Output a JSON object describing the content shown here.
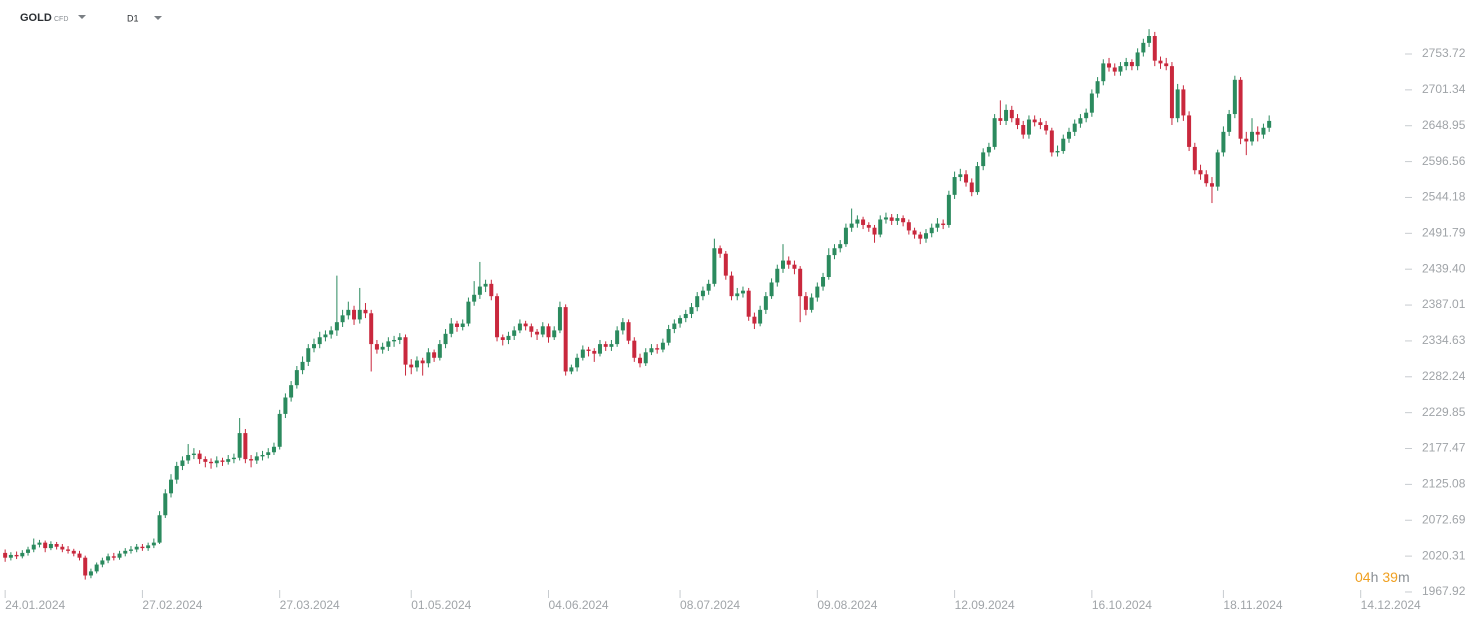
{
  "header": {
    "symbol": "GOLD",
    "badge": "CFD",
    "timeframe": "D1"
  },
  "countdown": {
    "hours": "04",
    "hours_unit": "h",
    "minutes": "39",
    "minutes_unit": "m"
  },
  "chart_data": {
    "type": "candlestick",
    "up_color": "#2b8a5e",
    "down_color": "#c9283d",
    "ylim": [
      1956.2,
      2832.6
    ],
    "yticks": [
      1967.92,
      2020.31,
      2072.69,
      2125.08,
      2177.47,
      2229.85,
      2282.24,
      2334.63,
      2387.01,
      {
        "value": 2439.4,
        "label": "2439.40"
      },
      2491.79,
      2544.18,
      2596.56,
      2648.95,
      2701.34,
      2753.72
    ],
    "xlim": [
      -0.9,
      243
    ],
    "xticks": [
      {
        "value": 0,
        "label": "24.01.2024"
      },
      {
        "value": 24,
        "label": "27.02.2024"
      },
      {
        "value": 48,
        "label": "27.03.2024"
      },
      {
        "value": 71,
        "label": "01.05.2024"
      },
      {
        "value": 95,
        "label": "04.06.2024"
      },
      {
        "value": 118,
        "label": "08.07.2024"
      },
      {
        "value": 142,
        "label": "09.08.2024"
      },
      {
        "value": 166,
        "label": "12.09.2024"
      },
      {
        "value": 190,
        "label": "16.10.2024"
      },
      {
        "value": 213,
        "label": "18.11.2024"
      },
      {
        "value": 237,
        "label": "14.12.2024"
      }
    ],
    "candles": [
      [
        2025,
        2030,
        2012,
        2018
      ],
      [
        2018,
        2026,
        2014,
        2022
      ],
      [
        2022,
        2027,
        2016,
        2020
      ],
      [
        2020,
        2029,
        2017,
        2025
      ],
      [
        2025,
        2034,
        2021,
        2030
      ],
      [
        2030,
        2046,
        2026,
        2037
      ],
      [
        2037,
        2044,
        2033,
        2040
      ],
      [
        2040,
        2043,
        2026,
        2032
      ],
      [
        2032,
        2042,
        2029,
        2038
      ],
      [
        2038,
        2041,
        2030,
        2034
      ],
      [
        2034,
        2038,
        2026,
        2030
      ],
      [
        2030,
        2035,
        2024,
        2028
      ],
      [
        2028,
        2031,
        2020,
        2024
      ],
      [
        2024,
        2028,
        2014,
        2018
      ],
      [
        2018,
        2021,
        1986,
        1992
      ],
      [
        1992,
        2002,
        1988,
        1998
      ],
      [
        1998,
        2011,
        1995,
        2008
      ],
      [
        2008,
        2018,
        2004,
        2014
      ],
      [
        2014,
        2024,
        2010,
        2020
      ],
      [
        2020,
        2025,
        2014,
        2018
      ],
      [
        2018,
        2028,
        2015,
        2024
      ],
      [
        2024,
        2032,
        2020,
        2028
      ],
      [
        2028,
        2035,
        2024,
        2030
      ],
      [
        2030,
        2038,
        2026,
        2034
      ],
      [
        2034,
        2038,
        2028,
        2032
      ],
      [
        2032,
        2040,
        2028,
        2036
      ],
      [
        2036,
        2046,
        2032,
        2040
      ],
      [
        2040,
        2086,
        2038,
        2080
      ],
      [
        2080,
        2118,
        2076,
        2112
      ],
      [
        2112,
        2140,
        2106,
        2132
      ],
      [
        2132,
        2158,
        2126,
        2152
      ],
      [
        2152,
        2166,
        2146,
        2160
      ],
      [
        2160,
        2184,
        2155,
        2168
      ],
      [
        2168,
        2178,
        2162,
        2170
      ],
      [
        2170,
        2175,
        2155,
        2162
      ],
      [
        2162,
        2166,
        2150,
        2158
      ],
      [
        2158,
        2163,
        2148,
        2156
      ],
      [
        2156,
        2166,
        2150,
        2160
      ],
      [
        2160,
        2164,
        2152,
        2158
      ],
      [
        2158,
        2168,
        2154,
        2162
      ],
      [
        2162,
        2170,
        2156,
        2164
      ],
      [
        2164,
        2222,
        2160,
        2200
      ],
      [
        2200,
        2206,
        2156,
        2162
      ],
      [
        2162,
        2168,
        2150,
        2160
      ],
      [
        2160,
        2172,
        2155,
        2166
      ],
      [
        2166,
        2174,
        2160,
        2168
      ],
      [
        2168,
        2178,
        2163,
        2172
      ],
      [
        2172,
        2186,
        2168,
        2180
      ],
      [
        2180,
        2234,
        2176,
        2228
      ],
      [
        2228,
        2258,
        2222,
        2252
      ],
      [
        2252,
        2276,
        2246,
        2270
      ],
      [
        2270,
        2298,
        2265,
        2292
      ],
      [
        2292,
        2312,
        2286,
        2304
      ],
      [
        2304,
        2330,
        2298,
        2324
      ],
      [
        2324,
        2338,
        2318,
        2330
      ],
      [
        2330,
        2348,
        2324,
        2340
      ],
      [
        2340,
        2350,
        2334,
        2344
      ],
      [
        2344,
        2356,
        2338,
        2350
      ],
      [
        2350,
        2430,
        2342,
        2362
      ],
      [
        2362,
        2380,
        2355,
        2372
      ],
      [
        2372,
        2392,
        2366,
        2380
      ],
      [
        2380,
        2386,
        2358,
        2366
      ],
      [
        2366,
        2412,
        2360,
        2380
      ],
      [
        2380,
        2390,
        2368,
        2375
      ],
      [
        2375,
        2380,
        2290,
        2330
      ],
      [
        2330,
        2336,
        2316,
        2322
      ],
      [
        2322,
        2332,
        2316,
        2326
      ],
      [
        2326,
        2340,
        2320,
        2334
      ],
      [
        2334,
        2342,
        2326,
        2336
      ],
      [
        2336,
        2346,
        2330,
        2340
      ],
      [
        2340,
        2344,
        2284,
        2300
      ],
      [
        2300,
        2308,
        2286,
        2296
      ],
      [
        2296,
        2312,
        2290,
        2306
      ],
      [
        2306,
        2310,
        2284,
        2302
      ],
      [
        2302,
        2324,
        2296,
        2318
      ],
      [
        2318,
        2322,
        2304,
        2310
      ],
      [
        2310,
        2336,
        2306,
        2330
      ],
      [
        2330,
        2352,
        2324,
        2345
      ],
      [
        2345,
        2368,
        2340,
        2360
      ],
      [
        2360,
        2364,
        2348,
        2355
      ],
      [
        2355,
        2366,
        2350,
        2360
      ],
      [
        2360,
        2398,
        2356,
        2392
      ],
      [
        2392,
        2422,
        2386,
        2402
      ],
      [
        2402,
        2450,
        2396,
        2414
      ],
      [
        2414,
        2424,
        2406,
        2418
      ],
      [
        2418,
        2424,
        2394,
        2400
      ],
      [
        2400,
        2404,
        2334,
        2340
      ],
      [
        2340,
        2344,
        2328,
        2336
      ],
      [
        2336,
        2348,
        2330,
        2342
      ],
      [
        2342,
        2356,
        2336,
        2350
      ],
      [
        2350,
        2366,
        2346,
        2360
      ],
      [
        2360,
        2364,
        2350,
        2356
      ],
      [
        2356,
        2360,
        2340,
        2348
      ],
      [
        2348,
        2352,
        2336,
        2344
      ],
      [
        2344,
        2362,
        2340,
        2356
      ],
      [
        2356,
        2360,
        2332,
        2340
      ],
      [
        2340,
        2356,
        2336,
        2350
      ],
      [
        2350,
        2392,
        2346,
        2384
      ],
      [
        2384,
        2388,
        2284,
        2290
      ],
      [
        2290,
        2300,
        2286,
        2296
      ],
      [
        2296,
        2316,
        2290,
        2310
      ],
      [
        2310,
        2328,
        2306,
        2322
      ],
      [
        2322,
        2326,
        2312,
        2320
      ],
      [
        2320,
        2324,
        2304,
        2316
      ],
      [
        2316,
        2336,
        2312,
        2330
      ],
      [
        2330,
        2334,
        2320,
        2326
      ],
      [
        2326,
        2336,
        2320,
        2330
      ],
      [
        2330,
        2356,
        2326,
        2350
      ],
      [
        2350,
        2368,
        2344,
        2362
      ],
      [
        2362,
        2366,
        2330,
        2335
      ],
      [
        2335,
        2340,
        2304,
        2310
      ],
      [
        2310,
        2316,
        2296,
        2302
      ],
      [
        2302,
        2324,
        2298,
        2318
      ],
      [
        2318,
        2330,
        2314,
        2324
      ],
      [
        2324,
        2330,
        2316,
        2322
      ],
      [
        2322,
        2338,
        2318,
        2332
      ],
      [
        2332,
        2358,
        2328,
        2352
      ],
      [
        2352,
        2366,
        2346,
        2360
      ],
      [
        2360,
        2372,
        2354,
        2368
      ],
      [
        2368,
        2380,
        2362,
        2374
      ],
      [
        2374,
        2390,
        2368,
        2384
      ],
      [
        2384,
        2406,
        2378,
        2400
      ],
      [
        2400,
        2414,
        2394,
        2408
      ],
      [
        2408,
        2424,
        2402,
        2418
      ],
      [
        2418,
        2484,
        2414,
        2470
      ],
      [
        2470,
        2474,
        2456,
        2462
      ],
      [
        2462,
        2466,
        2424,
        2430
      ],
      [
        2430,
        2436,
        2394,
        2400
      ],
      [
        2400,
        2412,
        2394,
        2404
      ],
      [
        2404,
        2414,
        2398,
        2408
      ],
      [
        2408,
        2412,
        2364,
        2370
      ],
      [
        2370,
        2376,
        2352,
        2360
      ],
      [
        2360,
        2386,
        2356,
        2380
      ],
      [
        2380,
        2406,
        2374,
        2400
      ],
      [
        2400,
        2426,
        2396,
        2420
      ],
      [
        2420,
        2446,
        2414,
        2440
      ],
      [
        2440,
        2476,
        2434,
        2452
      ],
      [
        2452,
        2458,
        2440,
        2446
      ],
      [
        2446,
        2452,
        2432,
        2440
      ],
      [
        2440,
        2444,
        2362,
        2400
      ],
      [
        2400,
        2406,
        2372,
        2380
      ],
      [
        2380,
        2404,
        2376,
        2398
      ],
      [
        2398,
        2420,
        2392,
        2414
      ],
      [
        2414,
        2434,
        2408,
        2428
      ],
      [
        2428,
        2470,
        2424,
        2460
      ],
      [
        2460,
        2476,
        2454,
        2470
      ],
      [
        2470,
        2482,
        2464,
        2476
      ],
      [
        2476,
        2506,
        2472,
        2500
      ],
      [
        2500,
        2528,
        2494,
        2506
      ],
      [
        2506,
        2518,
        2500,
        2512
      ],
      [
        2512,
        2516,
        2498,
        2504
      ],
      [
        2504,
        2508,
        2494,
        2500
      ],
      [
        2500,
        2504,
        2478,
        2490
      ],
      [
        2490,
        2518,
        2486,
        2512
      ],
      [
        2512,
        2522,
        2506,
        2515
      ],
      [
        2515,
        2520,
        2504,
        2510
      ],
      [
        2510,
        2520,
        2504,
        2514
      ],
      [
        2514,
        2518,
        2502,
        2508
      ],
      [
        2508,
        2512,
        2490,
        2496
      ],
      [
        2496,
        2500,
        2484,
        2490
      ],
      [
        2490,
        2494,
        2476,
        2484
      ],
      [
        2484,
        2498,
        2478,
        2492
      ],
      [
        2492,
        2506,
        2486,
        2500
      ],
      [
        2500,
        2514,
        2494,
        2506
      ],
      [
        2506,
        2512,
        2498,
        2504
      ],
      [
        2504,
        2554,
        2500,
        2548
      ],
      [
        2548,
        2582,
        2542,
        2574
      ],
      [
        2574,
        2586,
        2568,
        2578
      ],
      [
        2578,
        2584,
        2560,
        2566
      ],
      [
        2566,
        2572,
        2546,
        2552
      ],
      [
        2552,
        2596,
        2548,
        2590
      ],
      [
        2590,
        2616,
        2584,
        2610
      ],
      [
        2610,
        2624,
        2604,
        2618
      ],
      [
        2618,
        2666,
        2614,
        2660
      ],
      [
        2660,
        2686,
        2650,
        2656
      ],
      [
        2656,
        2680,
        2650,
        2672
      ],
      [
        2672,
        2678,
        2654,
        2660
      ],
      [
        2660,
        2666,
        2644,
        2650
      ],
      [
        2650,
        2656,
        2630,
        2636
      ],
      [
        2636,
        2664,
        2630,
        2658
      ],
      [
        2658,
        2664,
        2648,
        2654
      ],
      [
        2654,
        2660,
        2644,
        2650
      ],
      [
        2650,
        2656,
        2636,
        2642
      ],
      [
        2642,
        2646,
        2604,
        2610
      ],
      [
        2610,
        2620,
        2604,
        2612
      ],
      [
        2612,
        2636,
        2608,
        2630
      ],
      [
        2630,
        2646,
        2624,
        2640
      ],
      [
        2640,
        2658,
        2634,
        2652
      ],
      [
        2652,
        2666,
        2646,
        2660
      ],
      [
        2660,
        2674,
        2654,
        2668
      ],
      [
        2668,
        2702,
        2662,
        2696
      ],
      [
        2696,
        2720,
        2690,
        2714
      ],
      [
        2714,
        2746,
        2708,
        2740
      ],
      [
        2740,
        2748,
        2728,
        2734
      ],
      [
        2734,
        2740,
        2722,
        2728
      ],
      [
        2728,
        2742,
        2722,
        2736
      ],
      [
        2736,
        2748,
        2730,
        2742
      ],
      [
        2742,
        2746,
        2730,
        2736
      ],
      [
        2736,
        2762,
        2730,
        2756
      ],
      [
        2756,
        2776,
        2750,
        2770
      ],
      [
        2770,
        2790,
        2764,
        2780
      ],
      [
        2780,
        2786,
        2736,
        2744
      ],
      [
        2744,
        2750,
        2732,
        2740
      ],
      [
        2740,
        2748,
        2730,
        2736
      ],
      [
        2736,
        2742,
        2650,
        2660
      ],
      [
        2660,
        2710,
        2654,
        2702
      ],
      [
        2702,
        2708,
        2656,
        2664
      ],
      [
        2664,
        2670,
        2612,
        2618
      ],
      [
        2618,
        2624,
        2578,
        2584
      ],
      [
        2584,
        2592,
        2570,
        2578
      ],
      [
        2578,
        2584,
        2560,
        2565
      ],
      [
        2565,
        2574,
        2536,
        2560
      ],
      [
        2560,
        2614,
        2554,
        2610
      ],
      [
        2610,
        2648,
        2604,
        2640
      ],
      [
        2640,
        2672,
        2634,
        2666
      ],
      [
        2666,
        2722,
        2660,
        2716
      ],
      [
        2716,
        2720,
        2622,
        2630
      ],
      [
        2630,
        2640,
        2606,
        2626
      ],
      [
        2626,
        2660,
        2620,
        2640
      ],
      [
        2640,
        2648,
        2626,
        2636
      ],
      [
        2636,
        2652,
        2630,
        2646
      ],
      [
        2646,
        2664,
        2640,
        2656
      ]
    ]
  }
}
